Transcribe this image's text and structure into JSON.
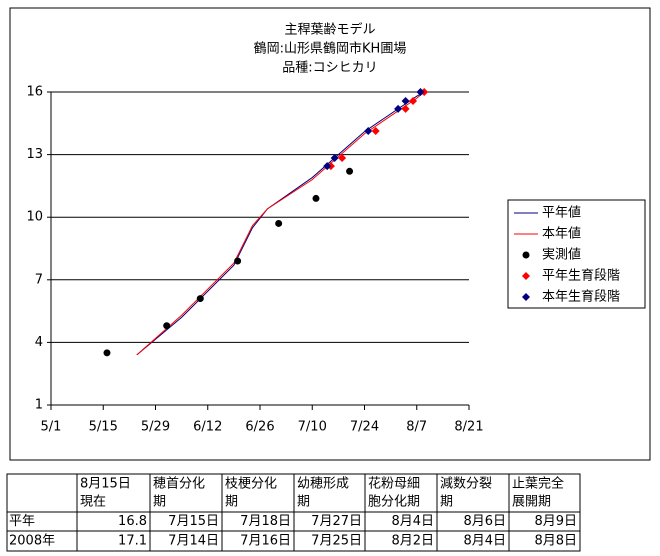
{
  "chart_data": {
    "type": "line",
    "title": [
      "主稈葉齢モデル",
      "鶴岡:山形県鶴岡市KH圃場",
      "品種:コシヒカリ"
    ],
    "xlim": [
      "5/1",
      "8/21"
    ],
    "xticks": [
      "5/1",
      "5/15",
      "5/29",
      "6/12",
      "6/26",
      "7/10",
      "7/24",
      "8/7",
      "8/21"
    ],
    "ylim": [
      1,
      16
    ],
    "yticks": [
      1,
      4,
      7,
      10,
      13,
      16
    ],
    "grid": true,
    "legend": "right",
    "series": [
      {
        "name": "平年値",
        "color": "#000080",
        "marker": "line",
        "x": [
          "5/24",
          "6/5",
          "6/19",
          "6/24",
          "6/28",
          "7/10",
          "7/24",
          "8/7",
          "8/9"
        ],
        "values": [
          3.4,
          5.2,
          7.7,
          9.5,
          10.4,
          11.9,
          14.1,
          15.8,
          16.0
        ]
      },
      {
        "name": "本年値",
        "color": "#ff0000",
        "marker": "line",
        "x": [
          "5/24",
          "6/5",
          "6/19",
          "6/24",
          "6/28",
          "7/10",
          "7/24",
          "8/7",
          "8/9"
        ],
        "values": [
          3.4,
          5.3,
          7.8,
          9.6,
          10.4,
          11.8,
          14.0,
          15.7,
          16.0
        ]
      },
      {
        "name": "実測値",
        "color": "#000000",
        "marker": "circle",
        "x": [
          "5/16",
          "6/1",
          "6/10",
          "6/20",
          "7/1",
          "7/11",
          "7/20"
        ],
        "values": [
          3.5,
          4.8,
          6.1,
          7.9,
          9.7,
          10.9,
          12.2
        ]
      },
      {
        "name": "平年生育段階",
        "color": "#ff0000",
        "marker": "diamond",
        "x": [
          "7/15",
          "7/18",
          "7/27",
          "8/4",
          "8/6",
          "8/9"
        ],
        "values": [
          12.45,
          12.84,
          14.13,
          15.19,
          15.57,
          16.0
        ]
      },
      {
        "name": "本年生育段階",
        "color": "#000080",
        "marker": "diamond",
        "x": [
          "7/14",
          "7/16",
          "7/25",
          "8/2",
          "8/4",
          "8/8"
        ],
        "values": [
          12.45,
          12.84,
          14.13,
          15.19,
          15.57,
          16.0
        ]
      }
    ]
  },
  "table": {
    "header": [
      [],
      [
        "8月15日",
        "現在"
      ],
      [
        "穂首分化",
        "期"
      ],
      [
        "枝梗分化",
        "期"
      ],
      [
        "幼穂形成",
        "期"
      ],
      [
        "花粉母細",
        "胞分化期"
      ],
      [
        "減数分裂",
        "期"
      ],
      [
        "止葉完全",
        "展開期"
      ]
    ],
    "rows": [
      [
        "平年",
        16.8,
        "7月15日",
        "7月18日",
        "7月27日",
        "8月4日",
        "8月6日",
        "8月9日"
      ],
      [
        "2008年",
        17.1,
        "7月14日",
        "7月16日",
        "7月25日",
        "8月2日",
        "8月4日",
        "8月8日"
      ]
    ]
  }
}
